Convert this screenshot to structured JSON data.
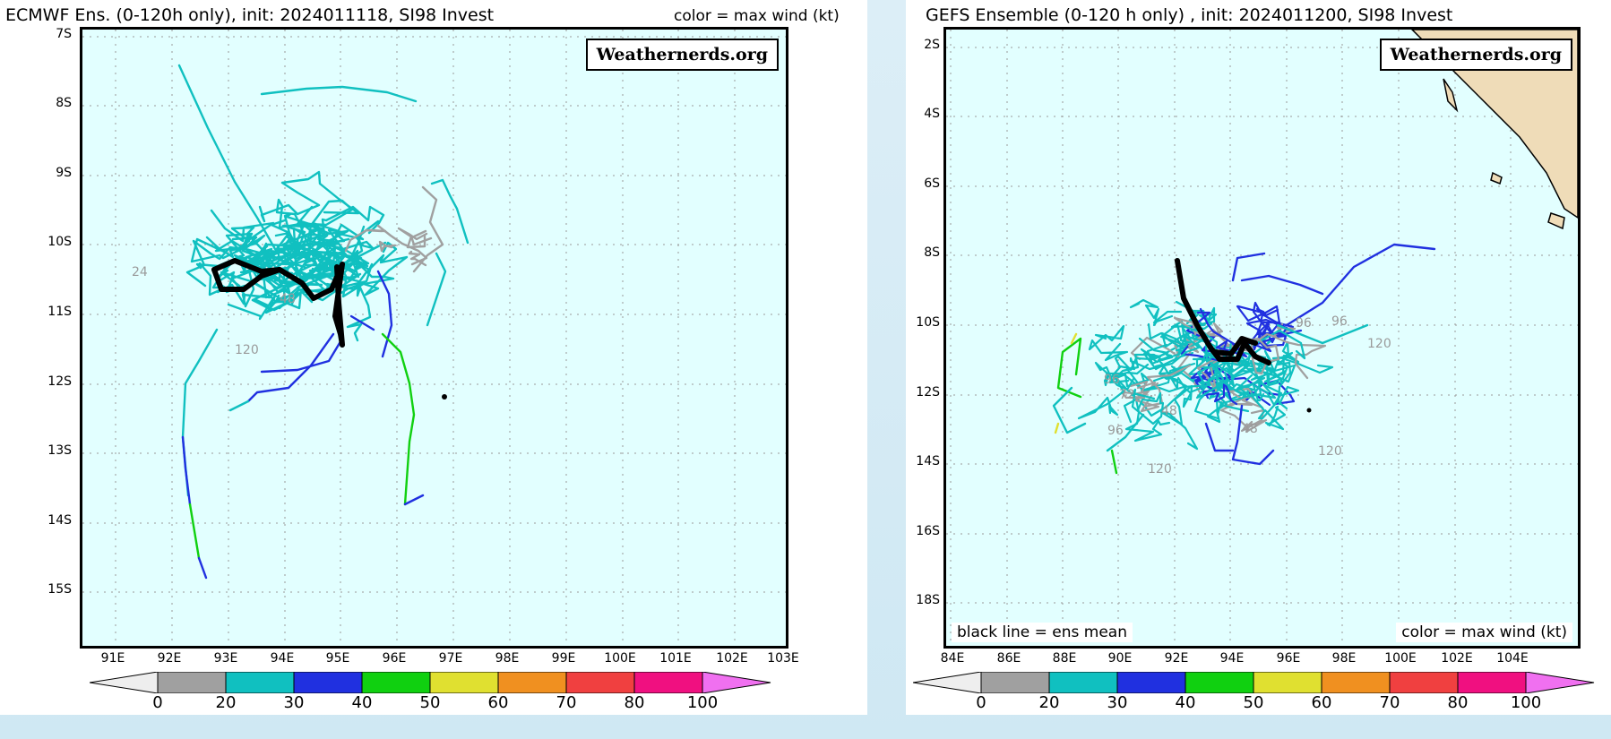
{
  "left_panel": {
    "title": "ECMWF Ens. (0-120h only), init: 2024011118, SI98 Invest",
    "color_note": "color = max wind (kt)",
    "watermark": "Weathernerds.org",
    "lat_labels": [
      "7S",
      "8S",
      "9S",
      "10S",
      "11S",
      "12S",
      "13S",
      "14S",
      "15S"
    ],
    "lon_labels": [
      "91E",
      "92E",
      "93E",
      "94E",
      "95E",
      "96E",
      "97E",
      "98E",
      "99E",
      "100E",
      "101E",
      "102E",
      "103E"
    ],
    "hour_labels": [
      "24",
      "120",
      "48"
    ]
  },
  "right_panel": {
    "title": "GEFS Ensemble (0-120 h only) , init: 2024011200, SI98 Invest",
    "watermark": "Weathernerds.org",
    "mean_note": "black line = ens mean",
    "color_note": "color = max wind (kt)",
    "lat_labels": [
      "2S",
      "4S",
      "6S",
      "8S",
      "10S",
      "12S",
      "14S",
      "16S",
      "18S"
    ],
    "lon_labels": [
      "84E",
      "86E",
      "88E",
      "90E",
      "92E",
      "94E",
      "96E",
      "98E",
      "100E",
      "102E",
      "104E"
    ],
    "hour_labels": [
      "96",
      "120",
      "120",
      "120",
      "48",
      "96",
      "72",
      "96",
      "48",
      "96"
    ]
  },
  "colorbar": {
    "labels": [
      "0",
      "20",
      "30",
      "40",
      "50",
      "60",
      "70",
      "80",
      "100"
    ],
    "colors": [
      "#eeeeee",
      "#a0a0a0",
      "#10c0c0",
      "#2030e0",
      "#10d010",
      "#e0e030",
      "#f09020",
      "#f04040",
      "#f01080",
      "#f070f0"
    ]
  },
  "colors": {
    "map_bg": "#e2ffff",
    "land": "#efdcb8",
    "mean_track": "#000000",
    "w0_20": "#a0a0a0",
    "w20_30": "#10c0c0",
    "w30_40": "#2030e0",
    "w40_50": "#10d010",
    "w50_60": "#e0e030"
  }
}
